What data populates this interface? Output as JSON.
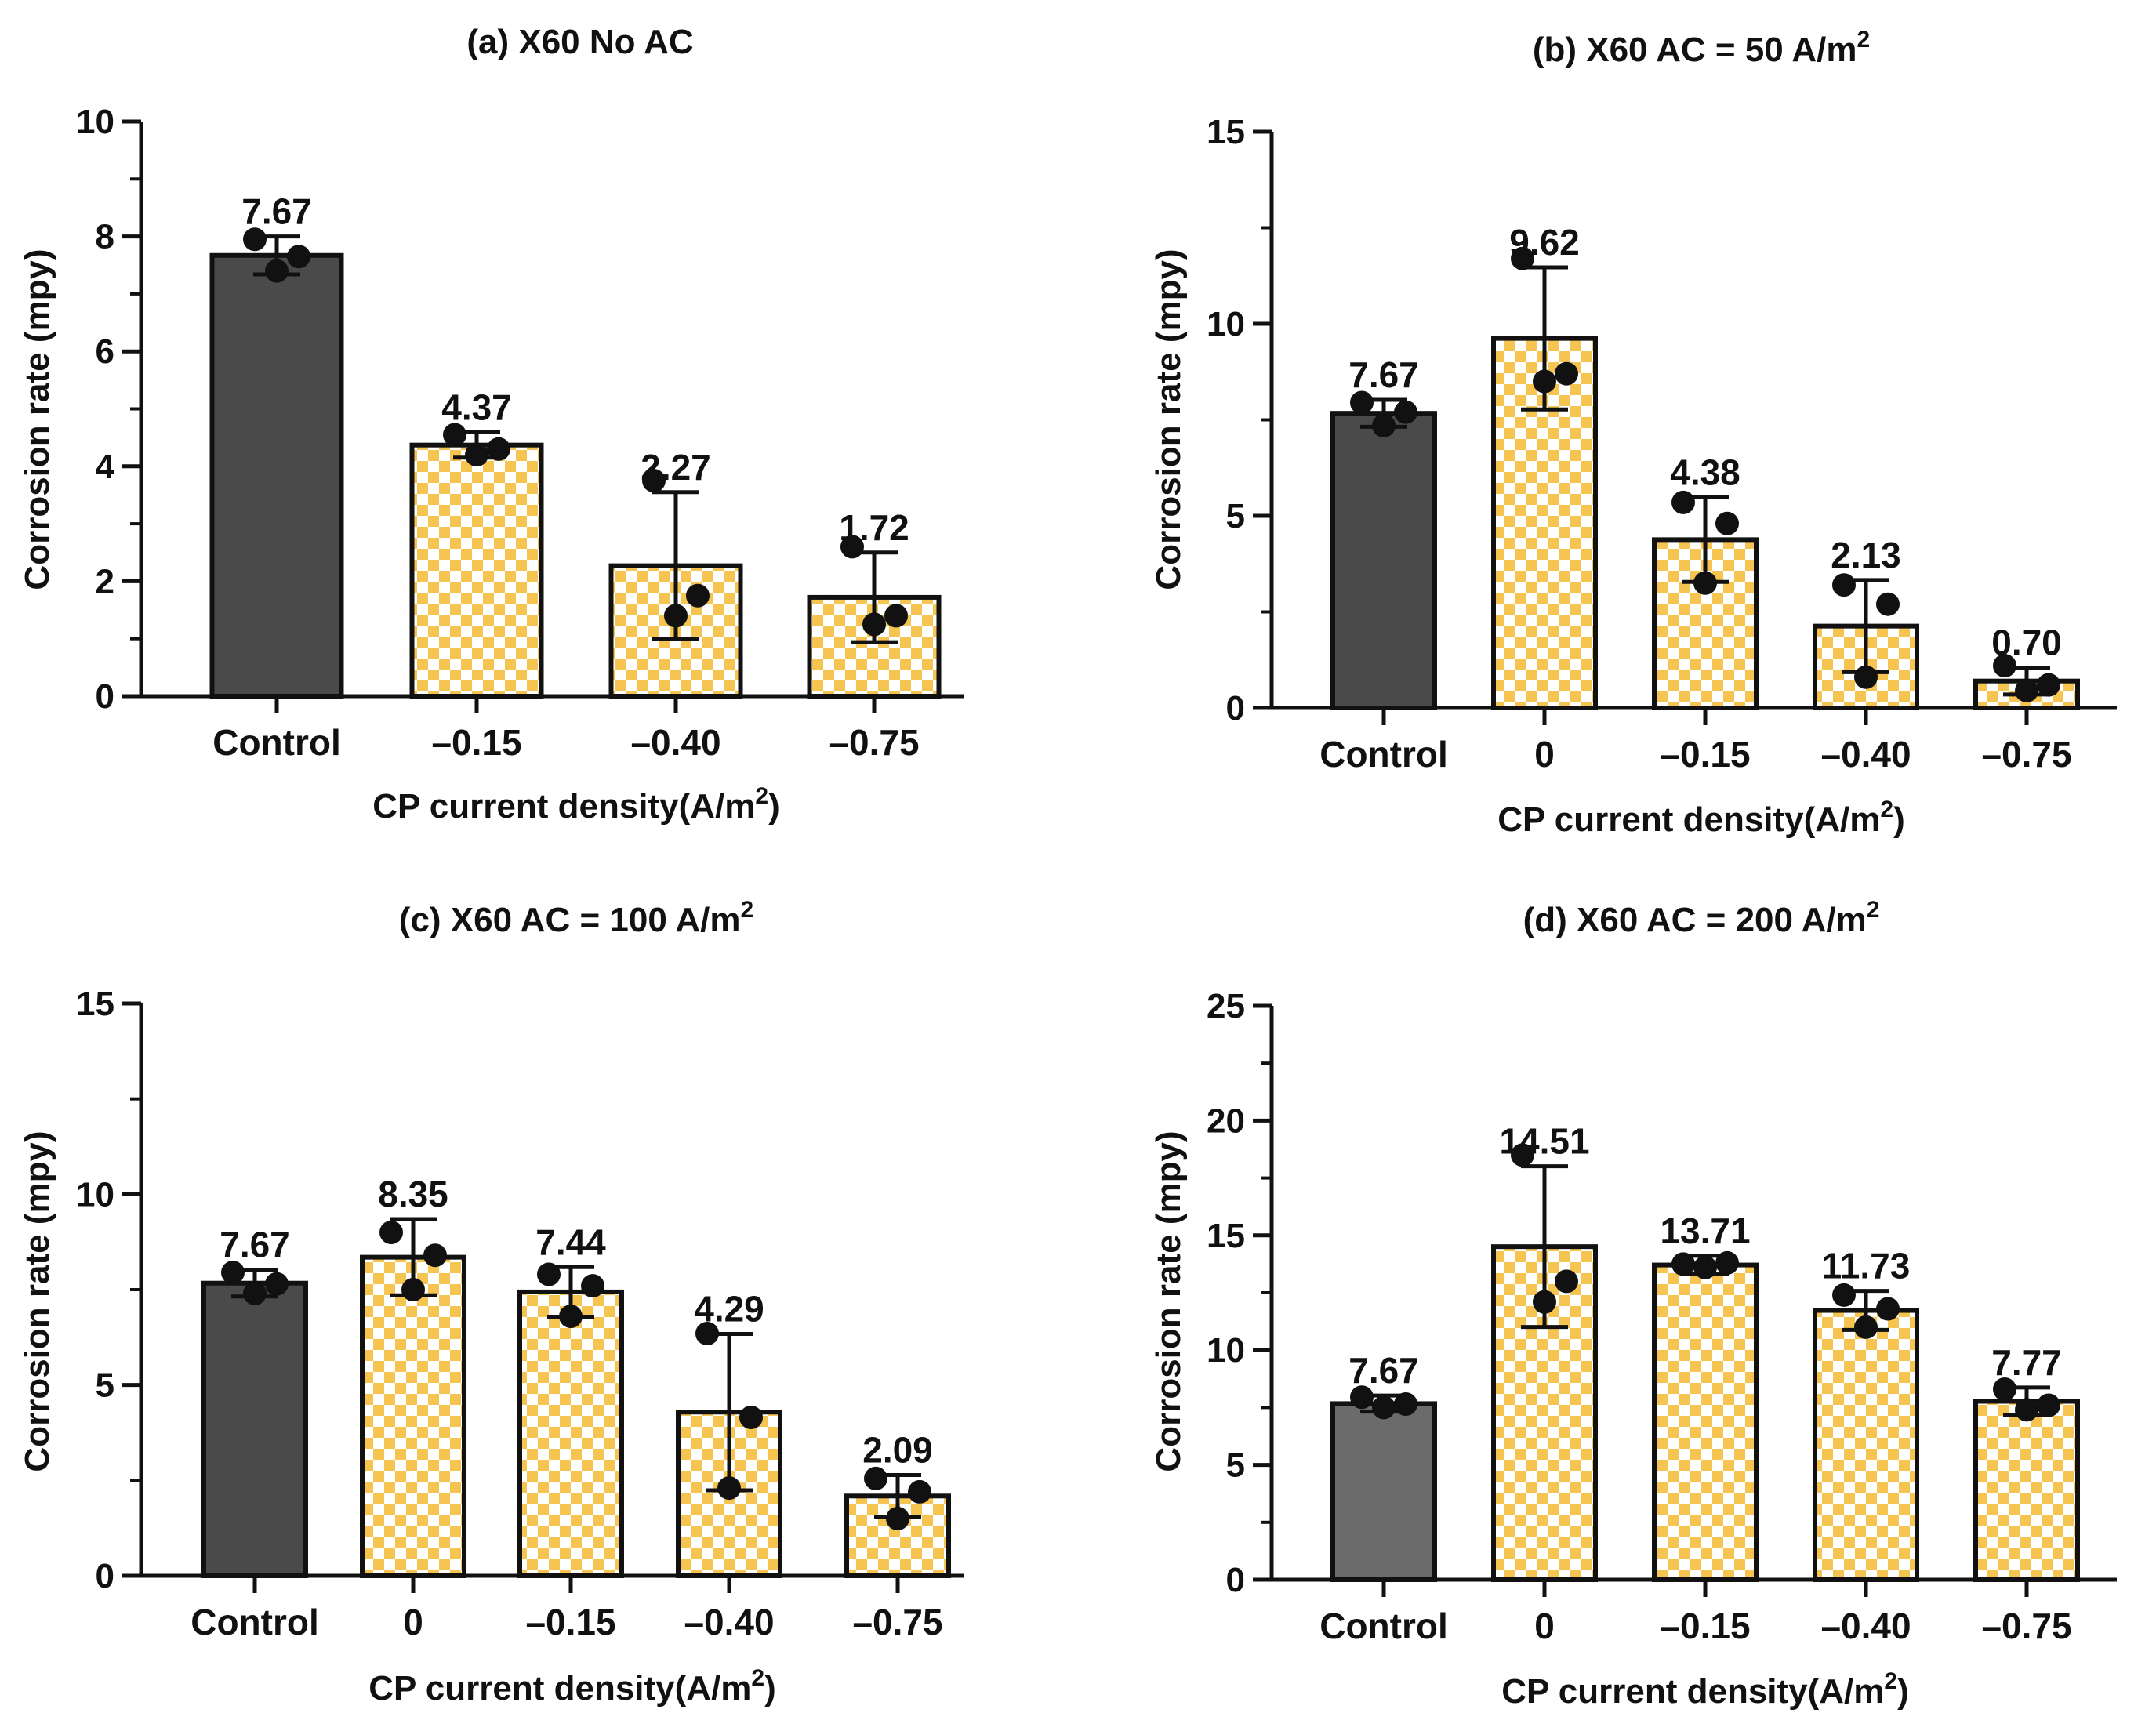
{
  "colors": {
    "control_a": "#4a4a4a",
    "control_b": "#4a4a4a",
    "control_c": "#4a4a4a",
    "control_d": "#6b6b6b",
    "checker_light": "#ffffff",
    "checker_dark": "#f5c451",
    "ink": "#111111"
  },
  "chart_data": [
    {
      "type": "bar",
      "title": "(a) X60 No AC",
      "title_unit_sup": "",
      "xlabel": "CP current density(A/m²)",
      "ylabel": "Corrosion rate (mpy)",
      "ylim": [
        0,
        10
      ],
      "major_ticks": [
        0,
        2,
        4,
        6,
        8,
        10
      ],
      "minor_step": 1,
      "categories": [
        "Control",
        "–0.15",
        "–0.40",
        "–0.75"
      ],
      "values": [
        7.67,
        4.37,
        2.27,
        1.72
      ],
      "value_labels": [
        "7.67",
        "4.37",
        "2.27",
        "1.72"
      ],
      "error": [
        0.33,
        0.22,
        1.28,
        0.78
      ],
      "points": [
        [
          7.95,
          7.4,
          7.65
        ],
        [
          4.55,
          4.2,
          4.3
        ],
        [
          3.75,
          1.4,
          1.75
        ],
        [
          2.6,
          1.25,
          1.4
        ]
      ],
      "fill": [
        "control",
        "checker",
        "checker",
        "checker"
      ]
    },
    {
      "type": "bar",
      "title": "(b) X60 AC =  50 A/m",
      "title_unit_sup": "2",
      "xlabel": "CP current density(A/m²)",
      "ylabel": "Corrosion rate (mpy)",
      "ylim": [
        0,
        15
      ],
      "major_ticks": [
        0,
        5,
        10,
        15
      ],
      "minor_step": 2.5,
      "categories": [
        "Control",
        "0",
        "–0.15",
        "–0.40",
        "–0.75"
      ],
      "values": [
        7.67,
        9.62,
        4.38,
        2.13,
        0.7
      ],
      "value_labels": [
        "7.67",
        "9.62",
        "4.38",
        "2.13",
        "0.70"
      ],
      "error": [
        0.35,
        1.85,
        1.1,
        1.2,
        0.35
      ],
      "points": [
        [
          7.95,
          7.35,
          7.7
        ],
        [
          11.7,
          8.5,
          8.7
        ],
        [
          5.35,
          3.25,
          4.8
        ],
        [
          3.2,
          0.8,
          2.7
        ],
        [
          1.1,
          0.45,
          0.6
        ]
      ],
      "fill": [
        "control",
        "checker",
        "checker",
        "checker",
        "checker"
      ]
    },
    {
      "type": "bar",
      "title": "(c) X60 AC =  100 A/m",
      "title_unit_sup": "2",
      "xlabel": "CP current density(A/m²)",
      "ylabel": "Corrosion rate (mpy)",
      "ylim": [
        0,
        15
      ],
      "major_ticks": [
        0,
        5,
        10,
        15
      ],
      "minor_step": 2.5,
      "categories": [
        "Control",
        "0",
        "–0.15",
        "–0.40",
        "–0.75"
      ],
      "values": [
        7.67,
        8.35,
        7.44,
        4.29,
        2.09
      ],
      "value_labels": [
        "7.67",
        "8.35",
        "7.44",
        "4.29",
        "2.09"
      ],
      "error": [
        0.35,
        1.0,
        0.65,
        2.05,
        0.55
      ],
      "points": [
        [
          7.95,
          7.4,
          7.65
        ],
        [
          9.0,
          7.5,
          8.4
        ],
        [
          7.9,
          6.8,
          7.6
        ],
        [
          6.35,
          2.3,
          4.15
        ],
        [
          2.55,
          1.5,
          2.2
        ]
      ],
      "fill": [
        "control",
        "checker",
        "checker",
        "checker",
        "checker"
      ]
    },
    {
      "type": "bar",
      "title": "(d) X60 AC =  200 A/m",
      "title_unit_sup": "2",
      "xlabel": "CP current density(A/m²)",
      "ylabel": "Corrosion rate (mpy)",
      "ylim": [
        0,
        25
      ],
      "major_ticks": [
        0,
        5,
        10,
        15,
        20,
        25
      ],
      "minor_step": 2.5,
      "categories": [
        "Control",
        "0",
        "–0.15",
        "–0.40",
        "–0.75"
      ],
      "values": [
        7.67,
        14.51,
        13.71,
        11.73,
        7.77
      ],
      "value_labels": [
        "7.67",
        "14.51",
        "13.71",
        "11.73",
        "7.77"
      ],
      "error": [
        0.35,
        3.5,
        0.4,
        0.85,
        0.6
      ],
      "points": [
        [
          7.95,
          7.5,
          7.65
        ],
        [
          18.5,
          12.1,
          13.0
        ],
        [
          13.75,
          13.6,
          13.8
        ],
        [
          12.4,
          11.0,
          11.8
        ],
        [
          8.3,
          7.4,
          7.6
        ]
      ],
      "fill": [
        "control",
        "checker",
        "checker",
        "checker",
        "checker"
      ]
    }
  ]
}
